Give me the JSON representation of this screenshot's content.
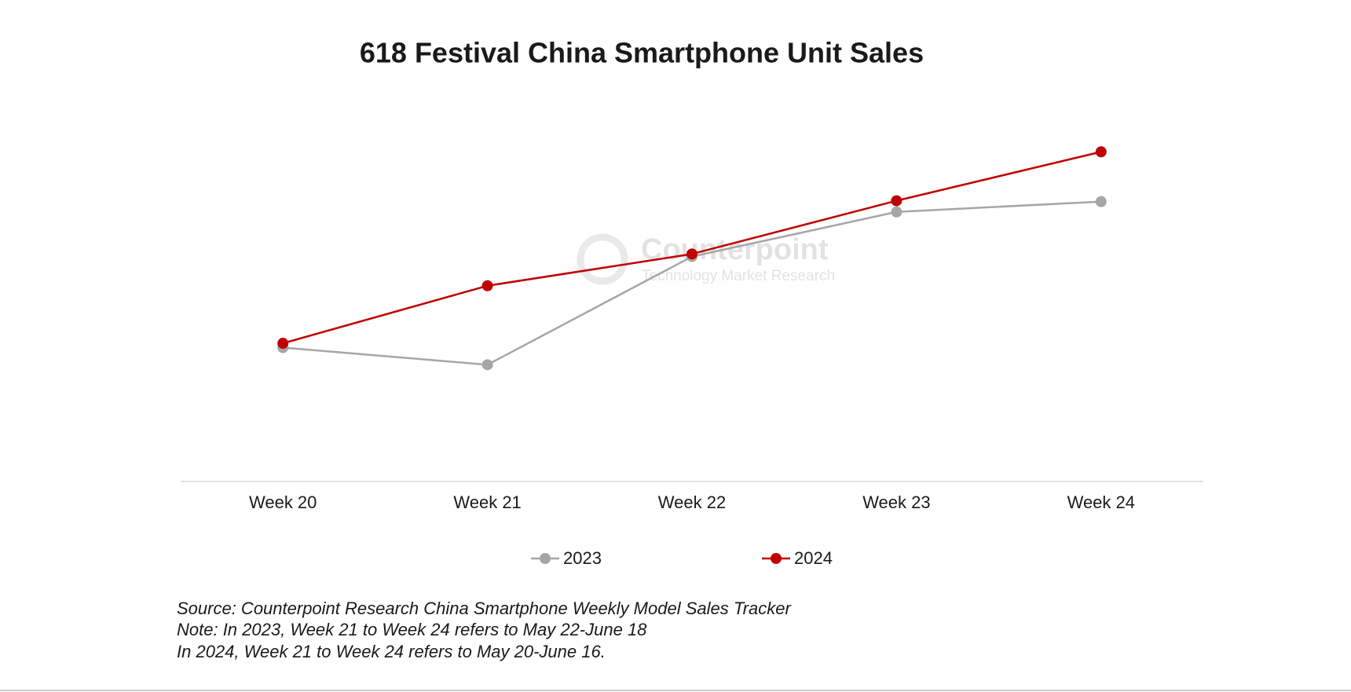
{
  "chart_data": {
    "type": "line",
    "title": "618 Festival China Smartphone Unit Sales",
    "watermark": [
      "Counterpoint",
      "Technology Market Research"
    ],
    "categories": [
      "Week 20",
      "Week 21",
      "Week 22",
      "Week 23",
      "Week 24"
    ],
    "series": [
      {
        "name": "2023",
        "color": "#a6a6a6",
        "values": [
          156,
          136,
          262,
          314,
          326
        ]
      },
      {
        "name": "2024",
        "color": "#c00000",
        "values": [
          161,
          228,
          265,
          327,
          384
        ]
      }
    ],
    "ylim": [
      0,
      430
    ],
    "notes": [
      "Source: Counterpoint Research China Smartphone Weekly Model Sales Tracker",
      "Note: In 2023, Week 21 to Week 24 refers to May 22-June 18",
      "In 2024, Week 21 to Week 24 refers to May 20-June 16."
    ]
  }
}
